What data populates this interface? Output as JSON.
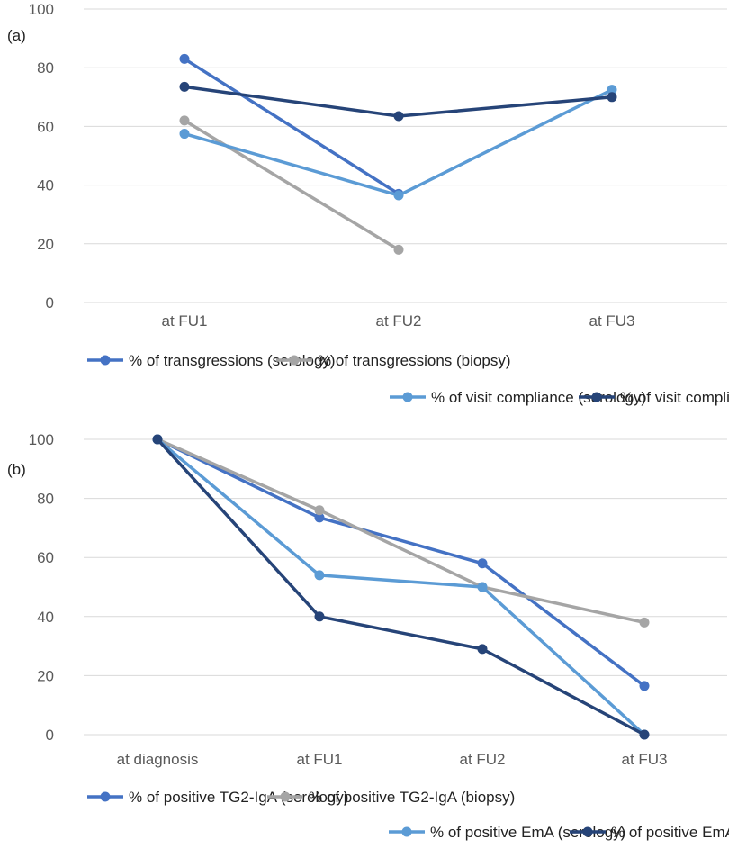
{
  "chart_data": [
    {
      "panel_label": "(a)",
      "type": "line",
      "categories": [
        "at FU1",
        "at FU2",
        "at FU3"
      ],
      "ylim": [
        0,
        100
      ],
      "yticks": [
        "0",
        "20",
        "40",
        "60",
        "80",
        "100"
      ],
      "grid": true,
      "legend_position": "bottom",
      "series": [
        {
          "name": "% of transgressions (serology)",
          "color": "#4472C4",
          "values": [
            83,
            37,
            null
          ]
        },
        {
          "name": "% of transgressions (biopsy)",
          "color": "#A5A5A5",
          "values": [
            62,
            18,
            null
          ]
        },
        {
          "name": "% of visit compliance (serology)",
          "color": "#5B9BD5",
          "values": [
            57.5,
            36.5,
            72.5
          ]
        },
        {
          "name": "% of visit compliance (biopsy)",
          "color": "#264478",
          "values": [
            73.5,
            63.5,
            70
          ]
        }
      ]
    },
    {
      "panel_label": "(b)",
      "type": "line",
      "categories": [
        "at diagnosis",
        "at FU1",
        "at FU2",
        "at FU3"
      ],
      "ylim": [
        0,
        100
      ],
      "yticks": [
        "0",
        "20",
        "40",
        "60",
        "80",
        "100"
      ],
      "grid": true,
      "legend_position": "bottom",
      "series": [
        {
          "name": "% of positive TG2-IgA (serology)",
          "color": "#4472C4",
          "values": [
            100,
            73.5,
            58,
            16.5
          ]
        },
        {
          "name": "% of positive TG2-IgA (biopsy)",
          "color": "#A5A5A5",
          "values": [
            100,
            76,
            50,
            38
          ]
        },
        {
          "name": "% of positive EmA (serology)",
          "color": "#5B9BD5",
          "values": [
            100,
            54,
            50,
            0
          ]
        },
        {
          "name": "% of positive EmA (biopsy)",
          "color": "#264478",
          "values": [
            100,
            40,
            29,
            0
          ]
        }
      ]
    }
  ]
}
